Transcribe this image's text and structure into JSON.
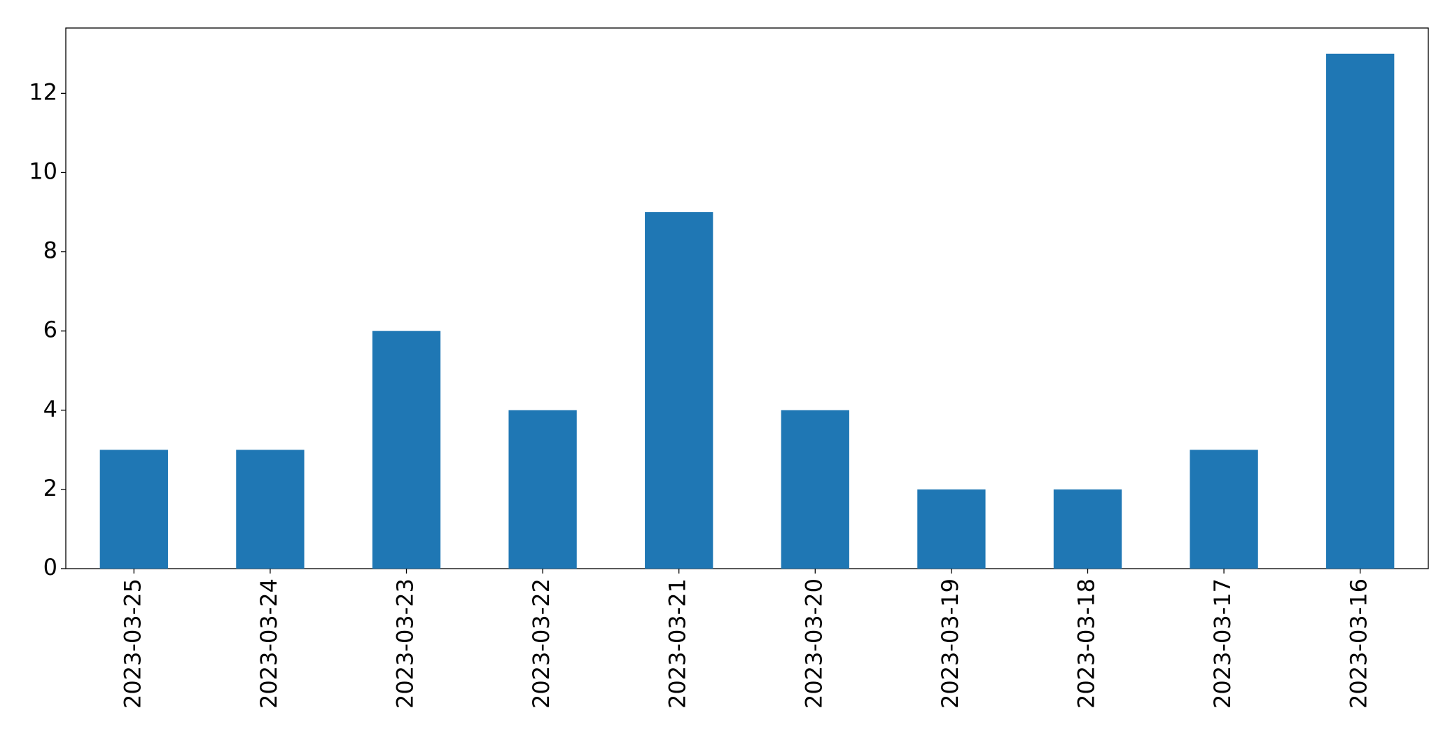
{
  "chart_data": {
    "type": "bar",
    "categories": [
      "2023-03-25",
      "2023-03-24",
      "2023-03-23",
      "2023-03-22",
      "2023-03-21",
      "2023-03-20",
      "2023-03-19",
      "2023-03-18",
      "2023-03-17",
      "2023-03-16"
    ],
    "values": [
      3,
      3,
      6,
      4,
      9,
      4,
      2,
      2,
      3,
      13
    ],
    "color": "#1f77b4",
    "ylim": [
      0,
      13.65
    ],
    "yticks": [
      0,
      2,
      4,
      6,
      8,
      10,
      12
    ],
    "grid": false
  }
}
